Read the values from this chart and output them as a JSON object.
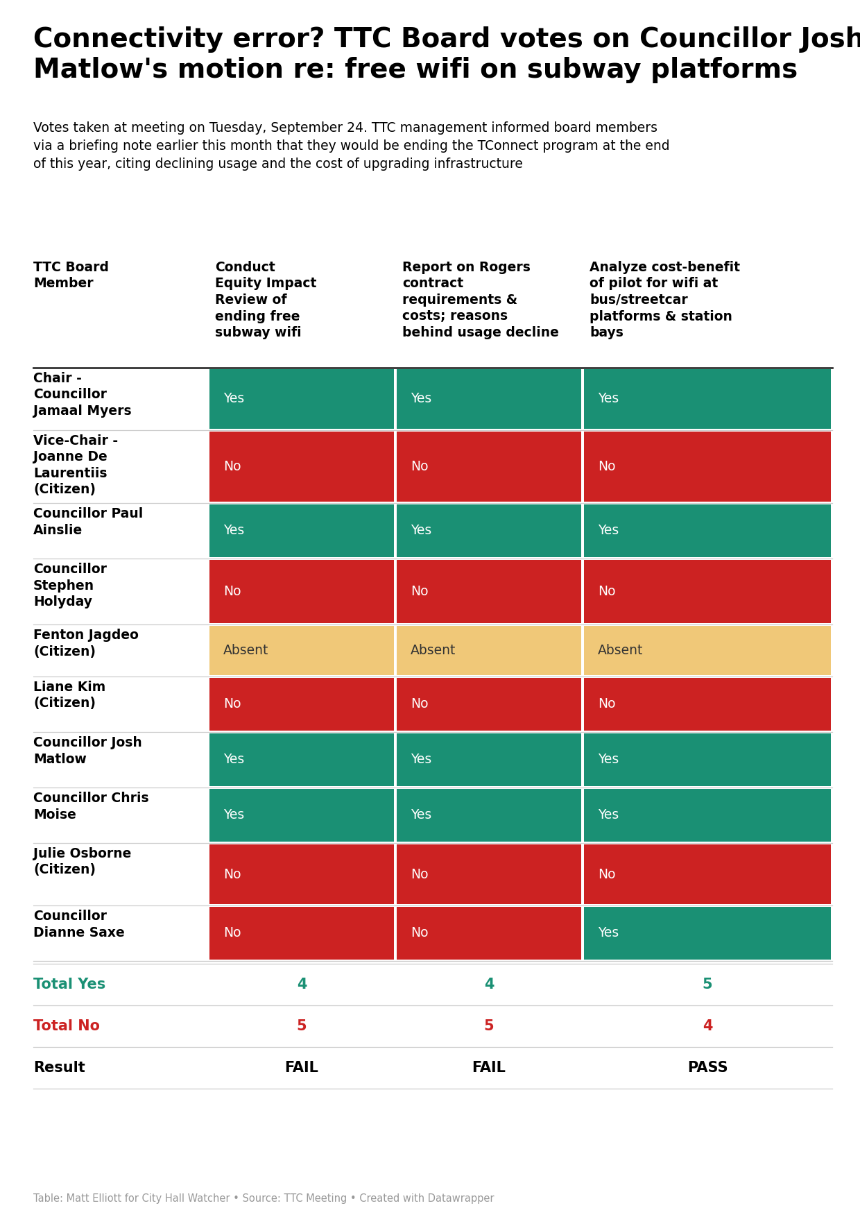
{
  "title": "Connectivity error? TTC Board votes on Councillor Josh\nMatlow's motion re: free wifi on subway platforms",
  "subtitle": "Votes taken at meeting on Tuesday, September 24. TTC management informed board members\nvia a briefing note earlier this month that they would be ending the TConnect program at the end\nof this year, citing declining usage and the cost of upgrading infrastructure",
  "col_headers": [
    "Conduct\nEquity Impact\nReview of\nending free\nsubway wifi",
    "Report on Rogers\ncontract\nrequirements &\ncosts; reasons\nbehind usage decline",
    "Analyze cost-benefit\nof pilot for wifi at\nbus/streetcar\nplatforms & station\nbays"
  ],
  "members": [
    "Chair -\nCouncillor\nJamaal Myers",
    "Vice-Chair -\nJoanne De\nLaurentiis\n(Citizen)",
    "Councillor Paul\nAinslie",
    "Councillor\nStephen\nHolyday",
    "Fenton Jagdeo\n(Citizen)",
    "Liane Kim\n(Citizen)",
    "Councillor Josh\nMatlow",
    "Councillor Chris\nMoise",
    "Julie Osborne\n(Citizen)",
    "Councillor\nDianne Saxe"
  ],
  "votes": [
    [
      "Yes",
      "Yes",
      "Yes"
    ],
    [
      "No",
      "No",
      "No"
    ],
    [
      "Yes",
      "Yes",
      "Yes"
    ],
    [
      "No",
      "No",
      "No"
    ],
    [
      "Absent",
      "Absent",
      "Absent"
    ],
    [
      "No",
      "No",
      "No"
    ],
    [
      "Yes",
      "Yes",
      "Yes"
    ],
    [
      "Yes",
      "Yes",
      "Yes"
    ],
    [
      "No",
      "No",
      "No"
    ],
    [
      "No",
      "No",
      "Yes"
    ]
  ],
  "totals": {
    "yes": [
      4,
      4,
      5
    ],
    "no": [
      5,
      5,
      4
    ],
    "result": [
      "FAIL",
      "FAIL",
      "PASS"
    ]
  },
  "colors": {
    "yes": "#1a9074",
    "no": "#cc2222",
    "absent": "#f0c878",
    "yes_text": "#ffffff",
    "no_text": "#ffffff",
    "absent_text": "#333333",
    "total_yes_label": "#1a9074",
    "total_no_label": "#cc2222",
    "total_yes_value": "#1a9074",
    "total_no_value": "#cc2222",
    "result_color": "#000000",
    "background": "#ffffff",
    "title_color": "#000000",
    "subtitle_color": "#000000",
    "footer_color": "#999999",
    "header_line": "#333333",
    "grid_line": "#cccccc"
  },
  "footer": "Table: Matt Elliott for City Hall Watcher • Source: TTC Meeting • Created with Datawrapper",
  "figure_width": 12.4,
  "figure_height": 17.54
}
